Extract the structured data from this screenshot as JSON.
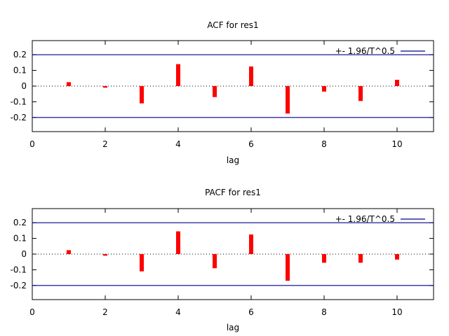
{
  "chart_data": [
    {
      "type": "bar",
      "title": "ACF for res1",
      "xlabel": "lag",
      "ylabel": "",
      "xlim": [
        0,
        11
      ],
      "ylim": [
        -0.29,
        0.29
      ],
      "xticks": [
        "0",
        "2",
        "4",
        "6",
        "8",
        "10"
      ],
      "yticks": [
        "-0.2",
        "-0.1",
        "0",
        "0.1",
        "0.2"
      ],
      "x": [
        1,
        2,
        3,
        4,
        5,
        6,
        7,
        8,
        9,
        10
      ],
      "values": [
        0.025,
        -0.01,
        -0.11,
        0.14,
        -0.07,
        0.125,
        -0.175,
        -0.035,
        -0.095,
        0.04
      ],
      "band": {
        "label": "+- 1.96/T^0.5",
        "value": 0.2
      },
      "zero_line": "dotted",
      "legend_position": "top-right",
      "colors": {
        "bars": "#ff0000",
        "band": "#00008b"
      }
    },
    {
      "type": "bar",
      "title": "PACF for res1",
      "xlabel": "lag",
      "ylabel": "",
      "xlim": [
        0,
        11
      ],
      "ylim": [
        -0.29,
        0.29
      ],
      "xticks": [
        "0",
        "2",
        "4",
        "6",
        "8",
        "10"
      ],
      "yticks": [
        "-0.2",
        "-0.1",
        "0",
        "0.1",
        "0.2"
      ],
      "x": [
        1,
        2,
        3,
        4,
        5,
        6,
        7,
        8,
        9,
        10
      ],
      "values": [
        0.025,
        -0.01,
        -0.11,
        0.145,
        -0.09,
        0.125,
        -0.17,
        -0.055,
        -0.055,
        -0.035
      ],
      "band": {
        "label": "+- 1.96/T^0.5",
        "value": 0.2
      },
      "zero_line": "dotted",
      "legend_position": "top-right",
      "colors": {
        "bars": "#ff0000",
        "band": "#00008b"
      }
    }
  ]
}
